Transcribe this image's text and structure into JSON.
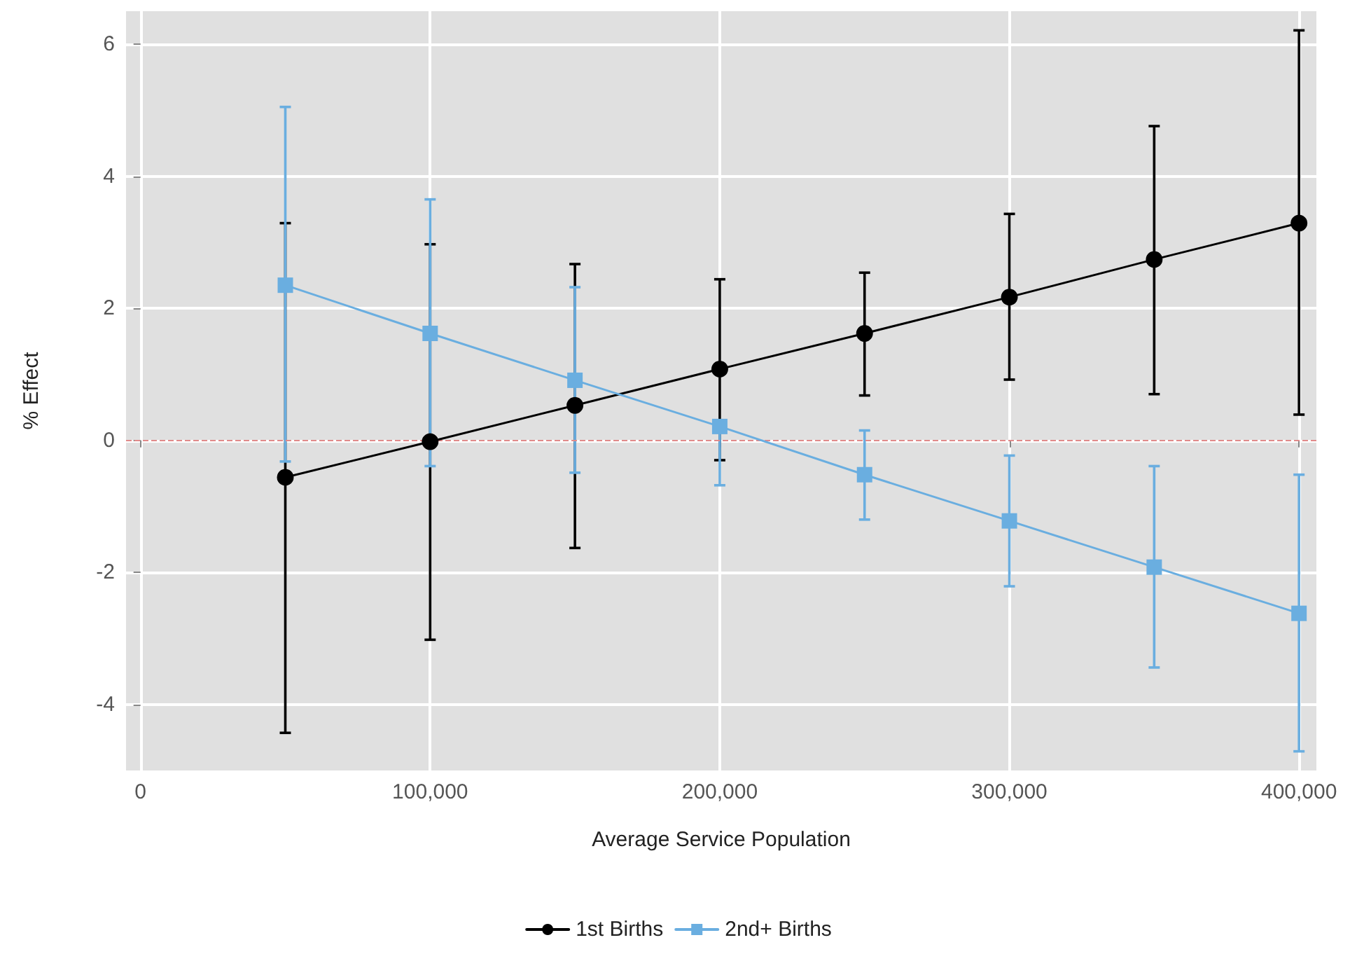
{
  "chart_data": {
    "type": "line",
    "xlabel": "Average Service Population",
    "ylabel": "% Effect",
    "x": [
      50000,
      100000,
      150000,
      200000,
      250000,
      300000,
      350000,
      400000
    ],
    "series": [
      {
        "name": "1st Births",
        "color": "#000000",
        "marker": "circle",
        "values": [
          -0.56,
          -0.02,
          0.53,
          1.08,
          1.62,
          2.17,
          2.74,
          3.29
        ],
        "errors": [
          [
            -4.43,
            3.29
          ],
          [
            -3.02,
            2.97
          ],
          [
            -1.63,
            2.67
          ],
          [
            -0.3,
            2.44
          ],
          [
            0.68,
            2.54
          ],
          [
            0.92,
            3.43
          ],
          [
            0.7,
            4.76
          ],
          [
            0.39,
            6.21
          ]
        ]
      },
      {
        "name": "2nd+ Births",
        "color": "#6aaee0",
        "marker": "square",
        "values": [
          2.35,
          1.62,
          0.91,
          0.21,
          -0.52,
          -1.22,
          -1.92,
          -2.62
        ],
        "errors": [
          [
            -0.32,
            5.05
          ],
          [
            -0.39,
            3.65
          ],
          [
            -0.49,
            2.32
          ],
          [
            -0.68,
            0.21
          ],
          [
            -1.2,
            0.15
          ],
          [
            -2.21,
            -0.23
          ],
          [
            -3.44,
            -0.39
          ],
          [
            -4.71,
            -0.52
          ]
        ]
      }
    ],
    "xlim": [
      -5000,
      406000
    ],
    "xticks": [
      {
        "value": 0,
        "label": "0"
      },
      {
        "value": 100000,
        "label": "100,000"
      },
      {
        "value": 200000,
        "label": "200,000"
      },
      {
        "value": 300000,
        "label": "300,000"
      },
      {
        "value": 400000,
        "label": "400,000"
      }
    ],
    "ylim": [
      -5,
      6.5
    ],
    "yticks": [
      -4,
      -2,
      0,
      2,
      4,
      6
    ],
    "ref_lines": [
      {
        "axis": "y",
        "value": 0,
        "color": "#e08a8a",
        "line_style": "dashed"
      }
    ],
    "grid": true,
    "legend": "bottom",
    "line_style": "solid"
  }
}
